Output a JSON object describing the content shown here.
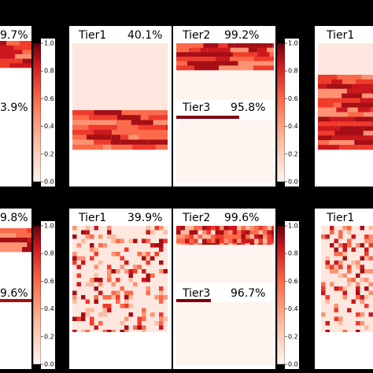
{
  "rows": [
    {
      "left_partial": {
        "top": "9.7%",
        "bottom": "3.9%"
      },
      "panel_a": {
        "label": "Tier1",
        "value": "40.1%"
      },
      "panel_b": {
        "top_label": "Tier2",
        "top_value": "99.2%",
        "bottom_label": "Tier3",
        "bottom_value": "95.8%"
      },
      "panel_c": {
        "label": "Tier1"
      }
    },
    {
      "left_partial": {
        "top": "9.8%",
        "bottom": "9.6%"
      },
      "panel_a": {
        "label": "Tier1",
        "value": "39.9%"
      },
      "panel_b": {
        "top_label": "Tier2",
        "top_value": "99.6%",
        "bottom_label": "Tier3",
        "bottom_value": "96.7%"
      },
      "panel_c": {
        "label": "Tier1"
      }
    }
  ],
  "colorbar_ticks": [
    "1.0",
    "0.8",
    "0.6",
    "0.4",
    "0.2",
    "0.0"
  ]
}
